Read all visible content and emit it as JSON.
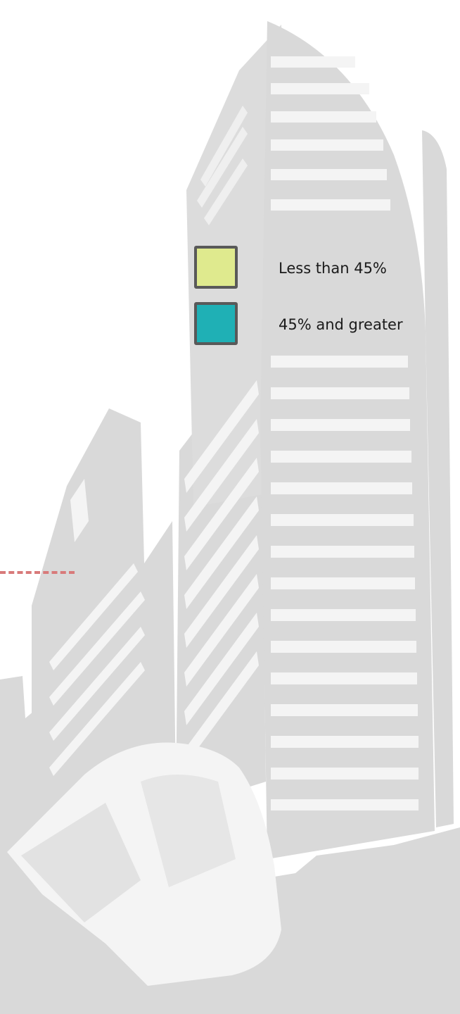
{
  "legend": {
    "items": [
      {
        "label": "Less than 45%",
        "color": "#dfea8e"
      },
      {
        "label": "45% and greater",
        "color": "#1fb0b5"
      }
    ]
  },
  "colors": {
    "building": "#d9d9d9",
    "building_light": "#f2f2f2",
    "leader_line": "#d87a7a",
    "swatch_border": "#595959"
  }
}
